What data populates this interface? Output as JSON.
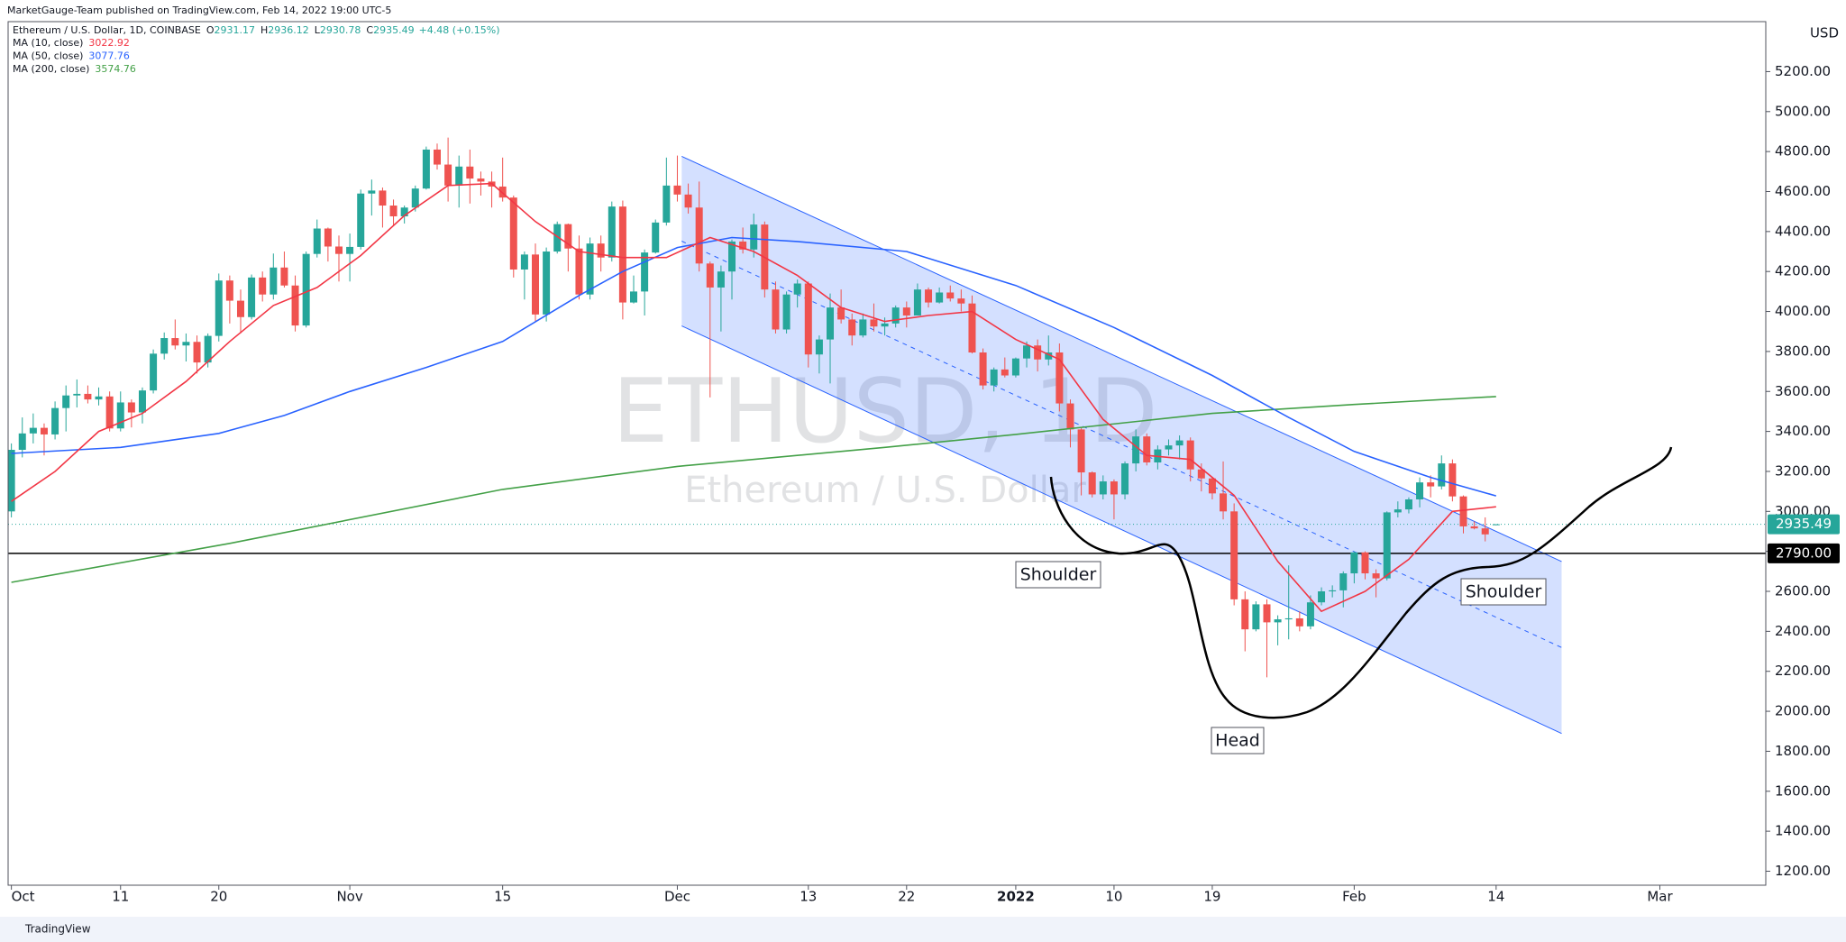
{
  "header": {
    "published": "MarketGauge-Team published on TradingView.com, Feb 14, 2022 19:00 UTC-5"
  },
  "footer": {
    "brand": "TradingView"
  },
  "chart_data": {
    "type": "candlestick",
    "title": "Ethereum / U.S. Dollar, 1D, COINBASE",
    "watermark": "ETHUSD, 1D",
    "watermark_subtitle": "Ethereum / U.S. Dollar",
    "ohlc_legend": [
      {
        "label": "O",
        "value": 2931.17
      },
      {
        "label": "H",
        "value": 2936.12
      },
      {
        "label": "L",
        "value": 2930.78
      },
      {
        "label": "C",
        "value": 2935.49
      }
    ],
    "change": "+4.48 (+0.15%)",
    "up_color": "#26a69a",
    "down_color": "#ef5350",
    "open": [
      3000,
      3308,
      3390,
      3418,
      3385,
      3517,
      3580,
      3588,
      3560,
      3575,
      3415,
      3545,
      3495,
      3605,
      3789,
      3867,
      3830,
      3848,
      3745,
      3878,
      4155,
      4054,
      3972,
      4170,
      4085,
      4220,
      4130,
      3930,
      4288,
      4415,
      4325,
      4288,
      4323,
      4590,
      4605,
      4530,
      4476,
      4520,
      4615,
      4810,
      4735,
      4630,
      4725,
      4665,
      4650,
      4625,
      4570,
      4210,
      4285,
      3985,
      4300,
      4437,
      4315,
      4085,
      4340,
      4270,
      4525,
      4045,
      4100,
      4295,
      4445,
      4630,
      4585,
      4520,
      4240,
      4120,
      4200,
      4350,
      4310,
      4435,
      4110,
      3910,
      4085,
      4140,
      3785,
      3860,
      4020,
      3960,
      3880,
      3960,
      3925,
      3940,
      4020,
      3980,
      4110,
      4045,
      4095,
      4065,
      4040,
      3795,
      3630,
      3710,
      3680,
      3765,
      3830,
      3760,
      3795,
      3540,
      3410,
      3195,
      3085,
      3150,
      3085,
      3240,
      3375,
      3245,
      3310,
      3330,
      3355,
      3210,
      3165,
      3090,
      3000,
      2560,
      2410,
      2535,
      2445,
      2460,
      2465,
      2425,
      2545,
      2600,
      2605,
      2690,
      2795,
      2690,
      2665,
      2995,
      3010,
      3060,
      3145,
      3125,
      3240,
      3075,
      2925,
      2915,
      2931.17
    ],
    "high": [
      3340,
      3470,
      3490,
      3440,
      3550,
      3630,
      3660,
      3630,
      3620,
      3600,
      3600,
      3560,
      3620,
      3810,
      3895,
      3960,
      3890,
      3880,
      3890,
      4190,
      4180,
      4110,
      4185,
      4200,
      4290,
      4300,
      4180,
      4300,
      4460,
      4420,
      4380,
      4390,
      4610,
      4660,
      4620,
      4560,
      4530,
      4630,
      4825,
      4840,
      4870,
      4780,
      4810,
      4700,
      4700,
      4770,
      4580,
      4300,
      4340,
      4320,
      4450,
      4440,
      4380,
      4370,
      4380,
      4550,
      4555,
      4180,
      4310,
      4460,
      4770,
      4780,
      4640,
      4650,
      4250,
      4230,
      4360,
      4420,
      4490,
      4450,
      4150,
      4100,
      4160,
      4150,
      3880,
      4090,
      4110,
      3990,
      3990,
      4040,
      3970,
      4030,
      4050,
      4140,
      4120,
      4120,
      4130,
      4110,
      4080,
      3815,
      3720,
      3770,
      3770,
      3850,
      3860,
      3880,
      3840,
      3560,
      3420,
      3200,
      3180,
      3160,
      3250,
      3410,
      3390,
      3330,
      3360,
      3380,
      3370,
      3240,
      3170,
      3250,
      3040,
      2600,
      2550,
      2560,
      2480,
      2730,
      2500,
      2580,
      2620,
      2630,
      2700,
      2800,
      2800,
      2710,
      3000,
      3050,
      3070,
      3170,
      3180,
      3280,
      3260,
      3080,
      2950,
      2970,
      2936.12
    ],
    "low": [
      2970,
      3270,
      3340,
      3280,
      3360,
      3400,
      3520,
      3540,
      3530,
      3400,
      3400,
      3420,
      3440,
      3590,
      3760,
      3810,
      3750,
      3690,
      3720,
      3850,
      3940,
      3890,
      3960,
      4050,
      4060,
      4120,
      3900,
      3920,
      4270,
      4250,
      4150,
      4150,
      4310,
      4480,
      4420,
      4430,
      4440,
      4500,
      4610,
      4710,
      4550,
      4520,
      4540,
      4580,
      4520,
      4550,
      4170,
      4060,
      3950,
      3950,
      4290,
      4200,
      4060,
      4060,
      4200,
      4250,
      3960,
      4040,
      3980,
      4290,
      4430,
      4550,
      4490,
      4200,
      3570,
      3900,
      4060,
      4290,
      4270,
      4070,
      3890,
      3890,
      4020,
      3720,
      3690,
      3640,
      3940,
      3830,
      3870,
      3900,
      3880,
      3920,
      3920,
      3980,
      4020,
      4040,
      4050,
      4000,
      3790,
      3610,
      3600,
      3670,
      3670,
      3720,
      3700,
      3730,
      3500,
      3320,
      3080,
      3070,
      3060,
      2960,
      3060,
      3200,
      3230,
      3210,
      3280,
      3260,
      3150,
      3100,
      3060,
      2960,
      2530,
      2300,
      2400,
      2170,
      2330,
      2360,
      2400,
      2410,
      2530,
      2570,
      2520,
      2640,
      2660,
      2570,
      2655,
      2970,
      2990,
      3020,
      3070,
      3110,
      3050,
      2890,
      2910,
      2850,
      2930.78
    ],
    "close": [
      3308,
      3390,
      3418,
      3385,
      3517,
      3580,
      3588,
      3560,
      3575,
      3415,
      3545,
      3495,
      3605,
      3789,
      3867,
      3830,
      3848,
      3745,
      3878,
      4155,
      4054,
      3972,
      4170,
      4085,
      4220,
      4130,
      3930,
      4288,
      4415,
      4325,
      4288,
      4323,
      4590,
      4605,
      4530,
      4476,
      4520,
      4615,
      4810,
      4735,
      4630,
      4725,
      4665,
      4650,
      4625,
      4570,
      4210,
      4285,
      3985,
      4300,
      4437,
      4315,
      4085,
      4340,
      4270,
      4525,
      4045,
      4100,
      4295,
      4445,
      4630,
      4585,
      4520,
      4240,
      4120,
      4200,
      4350,
      4310,
      4435,
      4110,
      3910,
      4085,
      4140,
      3785,
      3860,
      4020,
      3960,
      3880,
      3960,
      3925,
      3940,
      4020,
      3980,
      4110,
      4045,
      4095,
      4065,
      4040,
      3795,
      3630,
      3710,
      3680,
      3765,
      3830,
      3760,
      3795,
      3540,
      3410,
      3195,
      3085,
      3150,
      3085,
      3240,
      3375,
      3245,
      3310,
      3330,
      3355,
      3210,
      3165,
      3090,
      3000,
      2560,
      2410,
      2535,
      2445,
      2460,
      2465,
      2425,
      2545,
      2600,
      2605,
      2690,
      2795,
      2690,
      2665,
      2995,
      3010,
      3060,
      3145,
      3125,
      3240,
      3075,
      2925,
      2915,
      2885,
      2935.49
    ],
    "moving_averages": [
      {
        "name": "MA (200, close)",
        "color": "#43a047",
        "value": 3574.76,
        "x": [
          0,
          20,
          45,
          61,
          80,
          92,
          110,
          123,
          136
        ],
        "values": [
          2645,
          2840,
          3110,
          3225,
          3320,
          3385,
          3490,
          3535,
          3574.76
        ]
      },
      {
        "name": "MA (50, close)",
        "color": "#2962ff",
        "value": 3077.76,
        "x": [
          0,
          10,
          19,
          25,
          31,
          38,
          45,
          52,
          56,
          61,
          66,
          72,
          82,
          92,
          101,
          110,
          117,
          123,
          130,
          136
        ],
        "values": [
          3290,
          3320,
          3390,
          3480,
          3600,
          3720,
          3850,
          4080,
          4200,
          4320,
          4370,
          4350,
          4300,
          4130,
          3920,
          3680,
          3470,
          3300,
          3170,
          3077.76
        ]
      },
      {
        "name": "MA (10, close)",
        "color": "#f23645",
        "value": 3022.92,
        "x": [
          0,
          4,
          8,
          12,
          16,
          20,
          24,
          28,
          32,
          36,
          40,
          44,
          48,
          52,
          56,
          60,
          64,
          68,
          72,
          76,
          80,
          84,
          88,
          92,
          96,
          100,
          104,
          108,
          112,
          116,
          120,
          124,
          128,
          132,
          136
        ],
        "values": [
          3050,
          3200,
          3400,
          3490,
          3650,
          3850,
          4030,
          4120,
          4280,
          4480,
          4630,
          4640,
          4450,
          4300,
          4270,
          4270,
          4370,
          4300,
          4180,
          4020,
          3950,
          3980,
          4000,
          3860,
          3760,
          3460,
          3280,
          3260,
          3080,
          2750,
          2500,
          2600,
          2760,
          3000,
          3022.92
        ]
      }
    ],
    "channel": {
      "upper": [
        [
          61.4,
          4776
        ],
        [
          142,
          2749
        ]
      ],
      "lower": [
        [
          61.4,
          3928
        ],
        [
          142,
          1889
        ]
      ],
      "midline": [
        [
          61.4,
          4352
        ],
        [
          142,
          2319
        ]
      ],
      "color": "#2962ff"
    },
    "levels": [
      {
        "value": 2790,
        "label": "2790.00"
      }
    ],
    "last_price": 2935.49,
    "annotations": [
      "Shoulder",
      "Head",
      "Shoulder"
    ],
    "ylabel": "USD",
    "xlim": [
      -0.3,
      160.7
    ],
    "xticks": [
      {
        "value": 0,
        "label": "Oct"
      },
      {
        "value": 10,
        "label": "11"
      },
      {
        "value": 19,
        "label": "20"
      },
      {
        "value": 31,
        "label": "Nov"
      },
      {
        "value": 45,
        "label": "15"
      },
      {
        "value": 61,
        "label": "Dec"
      },
      {
        "value": 73,
        "label": "13"
      },
      {
        "value": 82,
        "label": "22"
      },
      {
        "value": 92,
        "label": "2022",
        "bold": true
      },
      {
        "value": 101,
        "label": "10"
      },
      {
        "value": 110,
        "label": "19"
      },
      {
        "value": 123,
        "label": "Feb"
      },
      {
        "value": 136,
        "label": "14"
      },
      {
        "value": 151,
        "label": "Mar"
      }
    ],
    "ylim": [
      1130,
      5450
    ],
    "yticks": [
      {
        "value": 1200,
        "label": "1200.00"
      },
      {
        "value": 1400,
        "label": "1400.00"
      },
      {
        "value": 1600,
        "label": "1600.00"
      },
      {
        "value": 1800,
        "label": "1800.00"
      },
      {
        "value": 2000,
        "label": "2000.00"
      },
      {
        "value": 2200,
        "label": "2200.00"
      },
      {
        "value": 2400,
        "label": "2400.00"
      },
      {
        "value": 2600,
        "label": "2600.00"
      },
      {
        "value": 2800,
        "label": "2800.00"
      },
      {
        "value": 3000,
        "label": "3000.00"
      },
      {
        "value": 3200,
        "label": "3200.00"
      },
      {
        "value": 3400,
        "label": "3400.00"
      },
      {
        "value": 3600,
        "label": "3600.00"
      },
      {
        "value": 3800,
        "label": "3800.00"
      },
      {
        "value": 4000,
        "label": "4000.00"
      },
      {
        "value": 4200,
        "label": "4200.00"
      },
      {
        "value": 4400,
        "label": "4400.00"
      },
      {
        "value": 4600,
        "label": "4600.00"
      },
      {
        "value": 4800,
        "label": "4800.00"
      },
      {
        "value": 5000,
        "label": "5000.00"
      },
      {
        "value": 5200,
        "label": "5200.00"
      }
    ],
    "grid": false
  }
}
